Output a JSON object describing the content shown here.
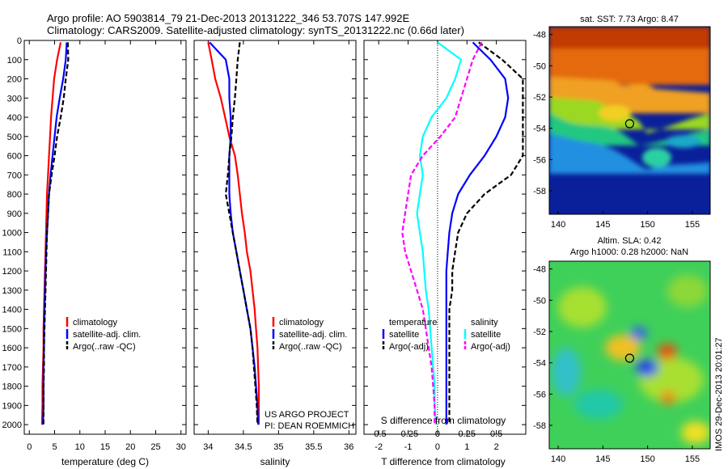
{
  "header": {
    "line1": "Argo profile: AO 5903814_79 21-Dec-2013 20131222_346 53.707S 147.992E",
    "line2": "Climatology: CARS2009. Satellite-adjusted climatology: synTS_20131222.nc (0.66d later)"
  },
  "colors": {
    "climatology": "#ff0000",
    "satellite": "#0000ff",
    "argo": "#000000",
    "salinity_sat": "#00ffff",
    "salinity_argo": "#ff00ff"
  },
  "chart_data": [
    {
      "type": "line",
      "xlabel": "temperature (deg C)",
      "xlim": [
        -1,
        31
      ],
      "xticks": [
        "0",
        "5",
        "10",
        "15",
        "20",
        "25",
        "30"
      ],
      "ylim": [
        0,
        2050
      ],
      "yticks": [
        "0",
        "100",
        "200",
        "300",
        "400",
        "500",
        "600",
        "700",
        "800",
        "900",
        "1000",
        "1100",
        "1200",
        "1300",
        "1400",
        "1500",
        "1600",
        "1700",
        "1800",
        "1900",
        "2000"
      ],
      "legend": [
        "climatology",
        "satellite-adj. clim.",
        "Argo(..raw -QC)"
      ],
      "series": [
        {
          "name": "climatology",
          "color": "#ff0000",
          "dash": false,
          "x": [
            6.2,
            5.5,
            4.9,
            4.6,
            4.3,
            4.1,
            3.9,
            3.7,
            3.5,
            3.4,
            3.3,
            3.2,
            3.1,
            3.0,
            2.9,
            2.8,
            2.8,
            2.7,
            2.6,
            2.6,
            2.5
          ],
          "y": [
            10,
            100,
            200,
            300,
            400,
            500,
            600,
            700,
            800,
            900,
            1000,
            1100,
            1200,
            1300,
            1400,
            1500,
            1600,
            1700,
            1800,
            1900,
            2000
          ]
        },
        {
          "name": "satellite-adj. clim.",
          "color": "#0000ff",
          "dash": false,
          "x": [
            7.4,
            7.2,
            6.7,
            6.0,
            5.4,
            5.0,
            4.6,
            4.2,
            3.9,
            3.7,
            3.5,
            3.3,
            3.2,
            3.1,
            3.0,
            2.9,
            2.9,
            2.8,
            2.8,
            2.8,
            2.7
          ],
          "y": [
            10,
            100,
            200,
            300,
            400,
            500,
            600,
            700,
            800,
            900,
            1000,
            1100,
            1200,
            1300,
            1400,
            1500,
            1600,
            1700,
            1800,
            1900,
            2000
          ]
        },
        {
          "name": "Argo(..raw -QC)",
          "color": "#000000",
          "dash": true,
          "x": [
            7.6,
            7.7,
            7.2,
            6.8,
            6.2,
            5.5,
            5.0,
            4.4,
            3.9,
            3.7,
            3.5,
            3.4,
            3.3,
            3.2,
            3.1,
            3.0,
            2.9,
            2.9,
            2.8,
            2.8,
            2.8
          ],
          "y": [
            10,
            100,
            200,
            300,
            400,
            500,
            600,
            700,
            800,
            900,
            1000,
            1100,
            1200,
            1300,
            1400,
            1500,
            1600,
            1700,
            1800,
            1900,
            2000
          ]
        }
      ]
    },
    {
      "type": "line",
      "xlabel": "salinity",
      "xlim": [
        33.8,
        36.1
      ],
      "xticks": [
        "34",
        "34.5",
        "35",
        "35.5",
        "36"
      ],
      "ylim": [
        0,
        2050
      ],
      "legend": [
        "climatology",
        "satellite-adj. clim.",
        "Argo(..raw -QC)"
      ],
      "annotation": [
        "US ARGO PROJECT",
        "PI: DEAN ROEMMICH"
      ],
      "series": [
        {
          "name": "climatology",
          "color": "#ff0000",
          "dash": false,
          "x": [
            34.0,
            34.05,
            34.1,
            34.18,
            34.24,
            34.3,
            34.38,
            34.42,
            34.45,
            34.48,
            34.52,
            34.55,
            34.6,
            34.63,
            34.66,
            34.68,
            34.7,
            34.71,
            34.72,
            34.72,
            34.72
          ],
          "y": [
            10,
            100,
            200,
            300,
            400,
            500,
            600,
            700,
            800,
            900,
            1000,
            1100,
            1200,
            1300,
            1400,
            1500,
            1600,
            1700,
            1800,
            1900,
            2000
          ]
        },
        {
          "name": "satellite-adj. clim.",
          "color": "#0000ff",
          "dash": false,
          "x": [
            34.02,
            34.25,
            34.3,
            34.3,
            34.32,
            34.32,
            34.3,
            34.3,
            34.3,
            34.32,
            34.35,
            34.4,
            34.45,
            34.5,
            34.55,
            34.6,
            34.63,
            34.66,
            34.68,
            34.7,
            34.71
          ],
          "y": [
            10,
            100,
            200,
            300,
            400,
            500,
            600,
            700,
            800,
            900,
            1000,
            1100,
            1200,
            1300,
            1400,
            1500,
            1600,
            1700,
            1800,
            1900,
            2000
          ]
        },
        {
          "name": "Argo(..raw -QC)",
          "color": "#000000",
          "dash": true,
          "x": [
            34.45,
            34.42,
            34.4,
            34.38,
            34.35,
            34.33,
            34.3,
            34.28,
            34.25,
            34.3,
            34.35,
            34.4,
            34.45,
            34.5,
            34.55,
            34.6,
            34.63,
            34.65,
            34.67,
            34.69,
            34.7
          ],
          "y": [
            10,
            100,
            200,
            300,
            400,
            500,
            600,
            700,
            800,
            900,
            1000,
            1100,
            1200,
            1300,
            1400,
            1500,
            1600,
            1700,
            1800,
            1900,
            2000
          ]
        }
      ]
    },
    {
      "type": "line",
      "xlabel": "T difference from climatology",
      "xlabel_top": "S difference from climatology",
      "xlim": [
        -2.5,
        3
      ],
      "xticks": [
        "-2",
        "-1",
        "0",
        "1",
        "2"
      ],
      "xticks_top": [
        "-0.5",
        "-0.25",
        "0",
        "0.25",
        "0.5"
      ],
      "ylim": [
        0,
        2050
      ],
      "legend_title_t": "temperature",
      "legend_title_s": "salinity",
      "legend": [
        "satellite",
        "Argo(-adj)",
        "satellite",
        "Argo(-adj)"
      ],
      "series": [
        {
          "name": "temperature satellite",
          "color": "#0000ff",
          "dash": false,
          "x": [
            1.2,
            1.8,
            2.3,
            2.4,
            2.3,
            2.0,
            1.6,
            1.1,
            0.7,
            0.5,
            0.4,
            0.35,
            0.3,
            0.3,
            0.3,
            0.3,
            0.3,
            0.3,
            0.3,
            0.3,
            0.3
          ],
          "y": [
            10,
            100,
            200,
            300,
            400,
            500,
            600,
            700,
            800,
            900,
            1000,
            1100,
            1200,
            1300,
            1400,
            1500,
            1600,
            1700,
            1800,
            1900,
            2000
          ]
        },
        {
          "name": "temperature Argo(-adj)",
          "color": "#000000",
          "dash": true,
          "x": [
            1.4,
            2.2,
            2.9,
            2.9,
            2.9,
            2.9,
            2.9,
            2.5,
            1.6,
            1.0,
            0.7,
            0.6,
            0.5,
            0.5,
            0.4,
            0.4,
            0.4,
            0.4,
            0.4,
            0.4,
            0.4
          ],
          "y": [
            10,
            100,
            200,
            300,
            400,
            500,
            600,
            700,
            800,
            900,
            1000,
            1100,
            1200,
            1300,
            1400,
            1500,
            1600,
            1700,
            1800,
            1900,
            2000
          ]
        },
        {
          "name": "salinity satellite",
          "color": "#00ffff",
          "dash": false,
          "x": [
            0,
            0.8,
            0.6,
            0.3,
            -0.2,
            -0.5,
            -0.6,
            -0.5,
            -0.6,
            -0.7,
            -0.6,
            -0.5,
            -0.45,
            -0.4,
            -0.3,
            -0.25,
            -0.2,
            -0.15,
            -0.1,
            -0.1,
            -0.05
          ],
          "y": [
            10,
            100,
            200,
            300,
            400,
            500,
            600,
            700,
            800,
            900,
            1000,
            1100,
            1200,
            1300,
            1400,
            1500,
            1600,
            1700,
            1800,
            1900,
            2000
          ]
        },
        {
          "name": "salinity Argo(-adj)",
          "color": "#ff00ff",
          "dash": true,
          "x": [
            1.5,
            1.2,
            1.0,
            0.8,
            0.6,
            0.1,
            -0.5,
            -0.9,
            -1.0,
            -1.1,
            -1.2,
            -1.1,
            -0.9,
            -0.7,
            -0.5,
            -0.4,
            -0.3,
            -0.2,
            -0.15,
            -0.1,
            -0.1
          ],
          "y": [
            10,
            100,
            200,
            300,
            400,
            500,
            600,
            700,
            800,
            900,
            1000,
            1100,
            1200,
            1300,
            1400,
            1500,
            1600,
            1700,
            1800,
            1900,
            2000
          ]
        }
      ]
    },
    {
      "type": "heatmap",
      "title": "sat. SST: 7.73 Argo: 8.47",
      "xlim": [
        139,
        157
      ],
      "ylim": [
        -59.5,
        -47.5
      ],
      "xticks": [
        "140",
        "145",
        "150",
        "155"
      ],
      "yticks": [
        "-48",
        "-50",
        "-52",
        "-54",
        "-56",
        "-58"
      ],
      "marker": {
        "lon": 147.992,
        "lat": -53.707
      }
    },
    {
      "type": "heatmap",
      "title": "Altim. SLA: 0.42",
      "subtitle": "Argo h1000: 0.28 h2000: NaN",
      "xlim": [
        139,
        157
      ],
      "ylim": [
        -59.5,
        -47.5
      ],
      "xticks": [
        "140",
        "145",
        "150",
        "155"
      ],
      "yticks": [
        "-48",
        "-50",
        "-52",
        "-54",
        "-56",
        "-58"
      ],
      "marker": {
        "lon": 147.992,
        "lat": -53.707
      },
      "side_label": "IMOS 29-Dec-2013 20:01:27"
    }
  ]
}
